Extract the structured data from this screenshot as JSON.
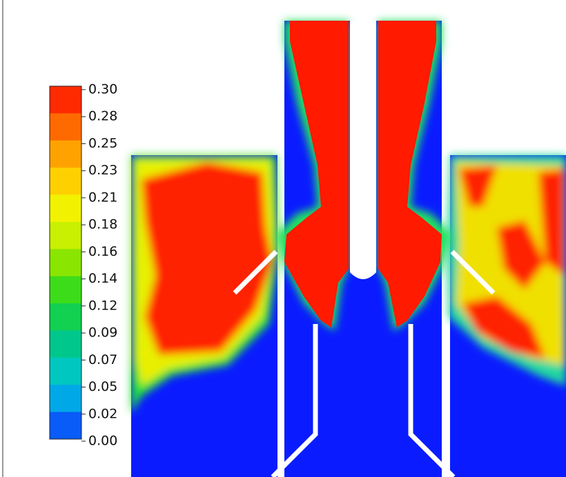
{
  "colorbar": {
    "ticks": [
      "0.30",
      "0.28",
      "0.25",
      "0.23",
      "0.21",
      "0.18",
      "0.16",
      "0.14",
      "0.12",
      "0.09",
      "0.07",
      "0.05",
      "0.02",
      "0.00"
    ],
    "colors": [
      "#ff2a00",
      "#ff6a00",
      "#ffa200",
      "#ffd000",
      "#f2f200",
      "#c8f000",
      "#8ae600",
      "#3ddc1a",
      "#12d050",
      "#00c88c",
      "#00c8c0",
      "#00a8e8",
      "#0a5cf8"
    ]
  }
}
